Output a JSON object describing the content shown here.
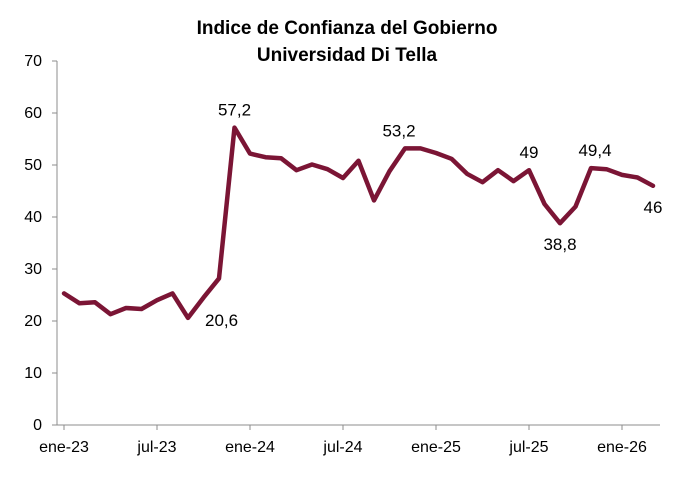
{
  "chart_data": {
    "type": "line",
    "title": "Indice de Confianza del Gobierno",
    "subtitle": "Universidad Di Tella",
    "xlabel": "",
    "ylabel": "",
    "ylim": [
      0,
      70
    ],
    "yticks": [
      0,
      10,
      20,
      30,
      40,
      50,
      60,
      70
    ],
    "xtick_labels": [
      "ene-23",
      "jul-23",
      "ene-24",
      "jul-24",
      "ene-25",
      "jul-25",
      "ene-26"
    ],
    "xtick_indices": [
      0,
      6,
      12,
      18,
      24,
      30,
      36
    ],
    "series": [
      {
        "name": "Indice de Confianza del Gobierno",
        "color": "#7B1535",
        "values": [
          25.3,
          23.4,
          23.6,
          21.3,
          22.5,
          22.3,
          24.0,
          25.3,
          20.6,
          24.5,
          28.2,
          57.2,
          52.2,
          51.5,
          51.3,
          49.0,
          50.1,
          49.2,
          47.5,
          50.8,
          43.2,
          48.8,
          53.2,
          53.2,
          52.3,
          51.2,
          48.3,
          46.7,
          49.0,
          46.9,
          49.0,
          42.5,
          38.8,
          42.0,
          49.4,
          49.2,
          48.1,
          47.6,
          46.0
        ]
      }
    ],
    "data_labels": [
      {
        "index": 8,
        "text": "20,6",
        "position": "below-right"
      },
      {
        "index": 11,
        "text": "57,2",
        "position": "above"
      },
      {
        "index": 22,
        "text": "53,2",
        "position": "above-left"
      },
      {
        "index": 30,
        "text": "49",
        "position": "above"
      },
      {
        "index": 32,
        "text": "38,8",
        "position": "below"
      },
      {
        "index": 34,
        "text": "49,4",
        "position": "above-right"
      },
      {
        "index": 38,
        "text": "46",
        "position": "below"
      }
    ],
    "grid": false,
    "legend": "none"
  }
}
